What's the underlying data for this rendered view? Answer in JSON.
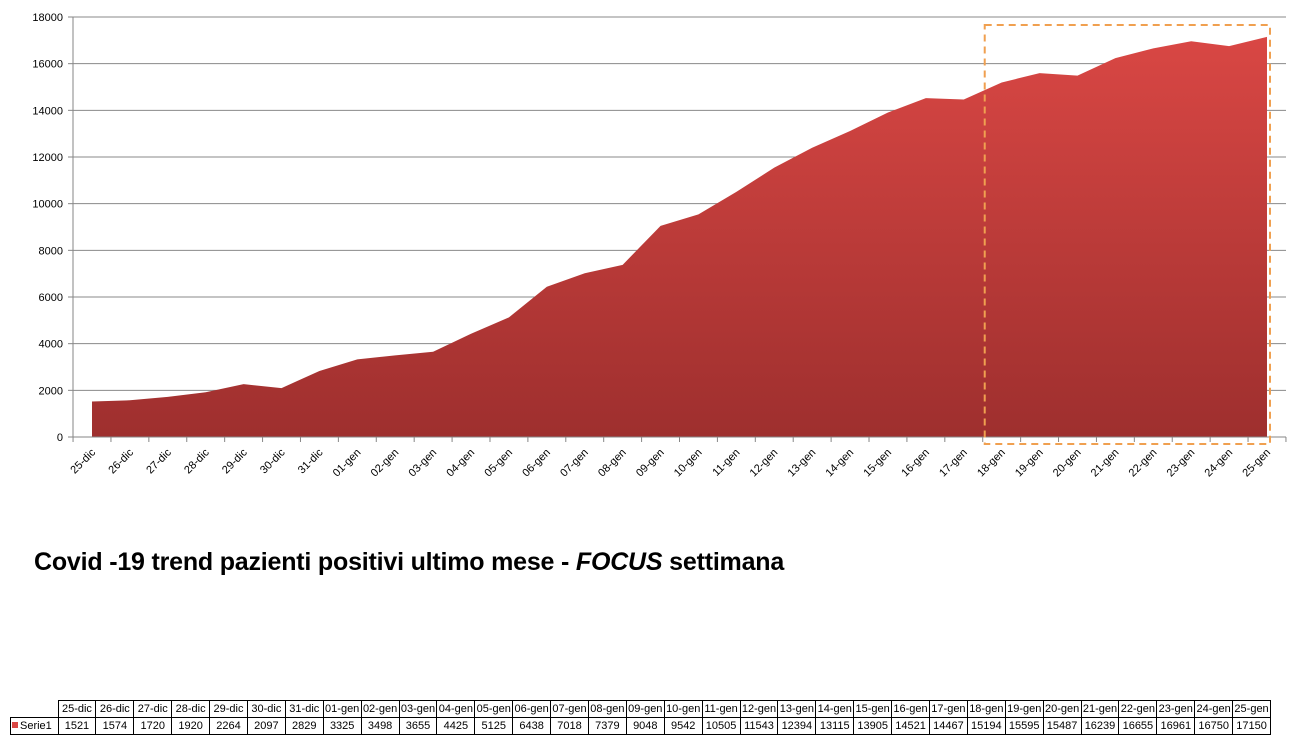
{
  "title": {
    "main": "Covid -19 trend pazienti positivi ultimo mese -",
    "focus": "FOCUS",
    "suffix": "settimana"
  },
  "chart_data": {
    "type": "area",
    "title": "Covid -19 trend pazienti positivi ultimo mese - FOCUS settimana",
    "categories": [
      "25-dic",
      "26-dic",
      "27-dic",
      "28-dic",
      "29-dic",
      "30-dic",
      "31-dic",
      "01-gen",
      "02-gen",
      "03-gen",
      "04-gen",
      "05-gen",
      "06-gen",
      "07-gen",
      "08-gen",
      "09-gen",
      "10-gen",
      "11-gen",
      "12-gen",
      "13-gen",
      "14-gen",
      "15-gen",
      "16-gen",
      "17-gen",
      "18-gen",
      "19-gen",
      "20-gen",
      "21-gen",
      "22-gen",
      "23-gen",
      "24-gen",
      "25-gen"
    ],
    "series": [
      {
        "name": "Serie1",
        "values": [
          1521,
          1574,
          1720,
          1920,
          2264,
          2097,
          2829,
          3325,
          3498,
          3655,
          4425,
          5125,
          6438,
          7018,
          7379,
          9048,
          9542,
          10505,
          11543,
          12394,
          13115,
          13905,
          14521,
          14467,
          15194,
          15595,
          15487,
          16239,
          16655,
          16961,
          16750,
          17150
        ]
      }
    ],
    "ylim": [
      0,
      18000
    ],
    "yticks": [
      0,
      2000,
      4000,
      6000,
      8000,
      10000,
      12000,
      14000,
      16000,
      18000
    ],
    "grid": true,
    "xlabel": "",
    "ylabel": "",
    "highlight": {
      "from": "18-gen",
      "to": "25-gen",
      "style": "dashed box"
    },
    "colors": {
      "area_top": "#d94744",
      "area_bottom": "#9e2f2e",
      "highlight": "#f0a050",
      "grid": "#8a8a8a",
      "axis": "#868686"
    }
  }
}
